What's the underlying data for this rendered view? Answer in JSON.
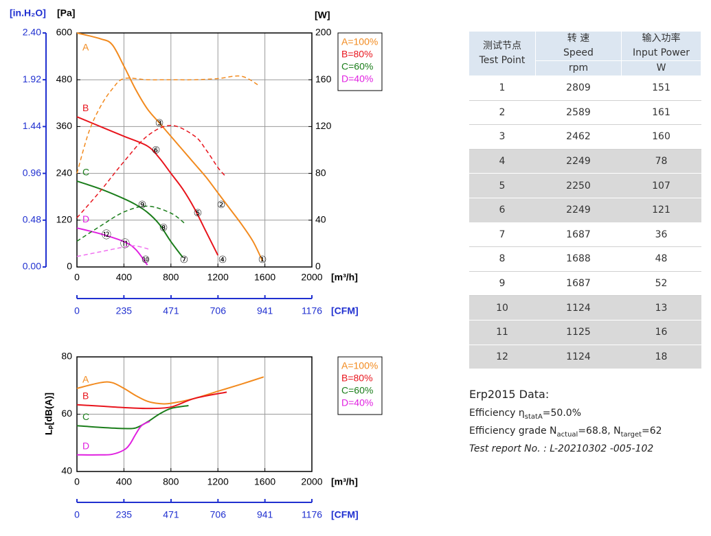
{
  "chart_data": [
    {
      "type": "line",
      "grid": true,
      "x_label": "[m³/h]",
      "xlim": [
        0,
        2000
      ],
      "xticks": [
        0,
        400,
        800,
        1200,
        1600,
        2000
      ],
      "x2_label": "[CFM]",
      "x2lim": [
        0,
        1176
      ],
      "x2ticks": [
        0,
        235,
        471,
        706,
        941,
        1176
      ],
      "y_label": "[Pa]",
      "ylim": [
        0,
        600
      ],
      "yticks": [
        0,
        120,
        240,
        360,
        480,
        600
      ],
      "y_alt_label": "[in.H₂O]",
      "y_alt_lim": [
        0,
        2.4
      ],
      "y_alt_color": "#1f2fd0",
      "y_alt_ticks": [
        {
          "value": 0,
          "label": "0.00"
        },
        {
          "value": 0.48,
          "label": "0.48"
        },
        {
          "value": 0.96,
          "label": "0.96"
        },
        {
          "value": 1.44,
          "label": "1.44"
        },
        {
          "value": 1.92,
          "label": "1.92"
        },
        {
          "value": 2.4,
          "label": "2.40"
        }
      ],
      "y2_label": "[W]",
      "y2lim": [
        0,
        200
      ],
      "y2ticks": [
        0,
        40,
        80,
        120,
        160,
        200
      ],
      "series": [
        {
          "name": "A=100%",
          "label": "A",
          "color": "#f28a1e",
          "x": [
            0,
            200,
            300,
            400,
            500,
            600,
            700,
            800,
            900,
            1000,
            1100,
            1200,
            1300,
            1400,
            1500,
            1580
          ],
          "values": [
            600,
            585,
            570,
            515,
            455,
            405,
            370,
            335,
            300,
            265,
            230,
            190,
            150,
            110,
            65,
            15
          ]
        },
        {
          "name": "B=80%",
          "label": "B",
          "color": "#e8141c",
          "x": [
            0,
            200,
            400,
            600,
            700,
            800,
            900,
            1000,
            1100,
            1200
          ],
          "values": [
            385,
            360,
            335,
            310,
            280,
            240,
            200,
            150,
            90,
            30
          ]
        },
        {
          "name": "C=60%",
          "label": "C",
          "color": "#1a7d1a",
          "x": [
            0,
            200,
            400,
            500,
            600,
            700,
            800,
            900
          ],
          "values": [
            220,
            200,
            175,
            160,
            140,
            110,
            65,
            25
          ]
        },
        {
          "name": "D=40%",
          "label": "D",
          "color": "#e020e0",
          "x": [
            0,
            200,
            400,
            500,
            600
          ],
          "values": [
            100,
            85,
            65,
            45,
            5
          ]
        },
        {
          "axis": "y2",
          "style": "dashed",
          "color": "#f28a1e",
          "x": [
            0,
            100,
            200,
            300,
            400,
            600,
            800,
            1000,
            1200,
            1400,
            1550
          ],
          "values": [
            80,
            115,
            137,
            152,
            161,
            160,
            160,
            160,
            161,
            163,
            155
          ]
        },
        {
          "axis": "y2",
          "style": "dashed",
          "color": "#e8141c",
          "x": [
            0,
            200,
            400,
            600,
            800,
            1000,
            1100,
            1200,
            1260
          ],
          "values": [
            42,
            65,
            90,
            112,
            121,
            112,
            100,
            85,
            78
          ]
        },
        {
          "axis": "y2",
          "style": "dashed",
          "color": "#1a7d1a",
          "x": [
            0,
            200,
            400,
            600,
            800,
            920
          ],
          "values": [
            22,
            35,
            47,
            52,
            46,
            37
          ]
        },
        {
          "axis": "y2",
          "style": "dashed",
          "color": "#f070f0",
          "x": [
            0,
            200,
            400,
            500,
            620
          ],
          "values": [
            9,
            13,
            17,
            18,
            15
          ]
        }
      ],
      "points": [
        {
          "label": "①",
          "x": 1579,
          "y": 18
        },
        {
          "label": "②",
          "x": 1228,
          "y": 158
        },
        {
          "label": "③",
          "x": 702,
          "y": 368
        },
        {
          "label": "④",
          "x": 1240,
          "y": 18
        },
        {
          "label": "⑤",
          "x": 1029,
          "y": 137
        },
        {
          "label": "⑥",
          "x": 673,
          "y": 298
        },
        {
          "label": "⑦",
          "x": 912,
          "y": 18
        },
        {
          "label": "⑧",
          "x": 737,
          "y": 99
        },
        {
          "label": "⑨",
          "x": 556,
          "y": 158
        },
        {
          "label": "⑩",
          "x": 585,
          "y": 18
        },
        {
          "label": "⑪",
          "x": 409,
          "y": 58
        },
        {
          "label": "⑫",
          "x": 251,
          "y": 81
        }
      ]
    },
    {
      "type": "line",
      "grid": true,
      "x_label": "[m³/h]",
      "xlim": [
        0,
        2000
      ],
      "xticks": [
        0,
        400,
        800,
        1200,
        1600,
        2000
      ],
      "x2_label": "[CFM]",
      "x2lim": [
        0,
        1176
      ],
      "x2ticks": [
        0,
        235,
        471,
        706,
        941,
        1176
      ],
      "y_label": "Lₚ[dB(A)]",
      "ylim": [
        40,
        80
      ],
      "yticks": [
        40,
        60,
        80
      ],
      "series": [
        {
          "name": "A=100%",
          "label": "A",
          "color": "#f28a1e",
          "x": [
            0,
            200,
            300,
            400,
            500,
            600,
            700,
            800,
            1000,
            1200,
            1400,
            1590
          ],
          "values": [
            69,
            71,
            71,
            69,
            66.5,
            64.5,
            63.7,
            63.8,
            65.5,
            68,
            70.5,
            73
          ]
        },
        {
          "name": "B=80%",
          "label": "B",
          "color": "#e8141c",
          "x": [
            0,
            200,
            400,
            600,
            800,
            1000,
            1275
          ],
          "values": [
            63.3,
            62.8,
            62.3,
            62,
            62.5,
            65.5,
            67.7
          ]
        },
        {
          "name": "C=60%",
          "label": "C",
          "color": "#1a7d1a",
          "x": [
            0,
            200,
            400,
            500,
            600,
            700,
            800,
            950
          ],
          "values": [
            56,
            55.4,
            55,
            55.2,
            57.3,
            60,
            62,
            63
          ]
        },
        {
          "name": "D=40%",
          "label": "D",
          "color": "#e020e0",
          "x": [
            0,
            200,
            300,
            400,
            450,
            500,
            550,
            620
          ],
          "values": [
            45.8,
            45.8,
            46,
            47.5,
            49.5,
            53,
            56,
            57.5
          ]
        }
      ]
    }
  ],
  "table": {
    "header": {
      "point_zh": "测试节点",
      "point_en": "Test Point",
      "speed_zh": "转 速",
      "speed_en": "Speed",
      "speed_unit": "rpm",
      "power_zh": "输入功率",
      "power_en": "Input Power",
      "power_unit": "W"
    },
    "rows": [
      [
        1,
        2809,
        151
      ],
      [
        2,
        2589,
        161
      ],
      [
        3,
        2462,
        160
      ],
      [
        4,
        2249,
        78
      ],
      [
        5,
        2250,
        107
      ],
      [
        6,
        2249,
        121
      ],
      [
        7,
        1687,
        36
      ],
      [
        8,
        1688,
        48
      ],
      [
        9,
        1687,
        52
      ],
      [
        10,
        1124,
        13
      ],
      [
        11,
        1125,
        16
      ],
      [
        12,
        1124,
        18
      ]
    ]
  },
  "notes": {
    "erp": "Erp2015  Data:",
    "efficiency": [
      "Efficiency η",
      "statA",
      "=50.0%"
    ],
    "grade": [
      "Efficiency grade N",
      "actual",
      "=68.8, N",
      "target",
      "=62"
    ],
    "report": "Test report No. : L-20210302 -005-102"
  }
}
